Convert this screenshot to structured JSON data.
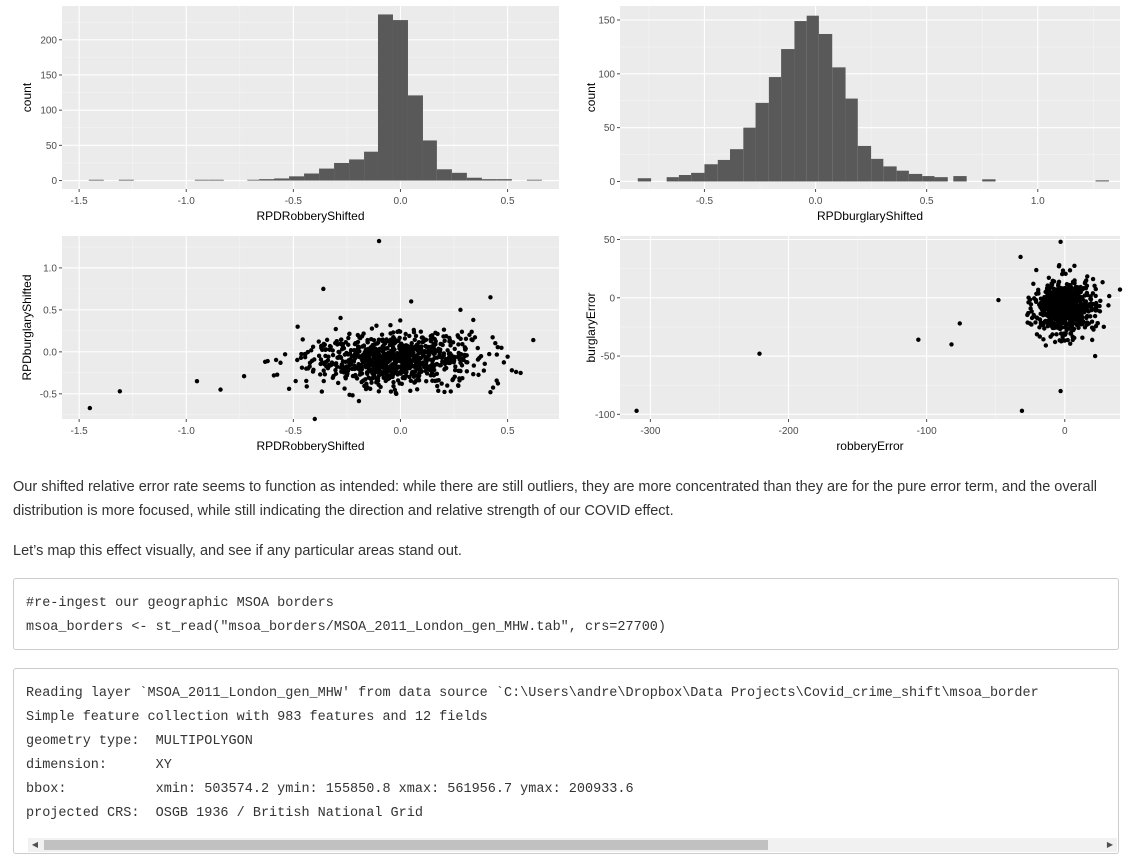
{
  "chart_data": [
    {
      "type": "bar",
      "xlabel": "RPDRobberyShifted",
      "ylabel": "count",
      "xlim": [
        -1.58,
        0.74
      ],
      "ylim": [
        -12,
        248
      ],
      "xticks": [
        "-1.5",
        "-1.0",
        "-0.5",
        "0.0",
        "0.5"
      ],
      "yticks": [
        "0",
        "50",
        "100",
        "150",
        "200"
      ],
      "grid": true,
      "bins": {
        "bin_start": [
          -1.455,
          -1.315,
          -0.96,
          -0.895,
          -0.715,
          -0.66,
          -0.59,
          -0.52,
          -0.45,
          -0.38,
          -0.31,
          -0.24,
          -0.17,
          -0.105,
          -0.035,
          0.035,
          0.105,
          0.17,
          0.24,
          0.31,
          0.38,
          0.45,
          0.59
        ],
        "bin_end": [
          -1.385,
          -1.245,
          -0.895,
          -0.825,
          -0.66,
          -0.59,
          -0.52,
          -0.45,
          -0.38,
          -0.31,
          -0.24,
          -0.17,
          -0.105,
          -0.035,
          0.035,
          0.105,
          0.17,
          0.24,
          0.31,
          0.38,
          0.45,
          0.52,
          0.66
        ],
        "count": [
          1,
          1,
          1,
          1,
          1,
          2,
          3,
          6,
          10,
          17,
          25,
          30,
          41,
          236,
          228,
          121,
          57,
          16,
          11,
          4,
          2,
          2,
          1
        ]
      }
    },
    {
      "type": "bar",
      "xlabel": "RPDburglaryShifted",
      "ylabel": "count",
      "xlim": [
        -0.88,
        1.37
      ],
      "ylim": [
        -7,
        163
      ],
      "xticks": [
        "-0.5",
        "0.0",
        "0.5",
        "1.0"
      ],
      "yticks": [
        "0",
        "50",
        "100",
        "150"
      ],
      "grid": true,
      "bins": {
        "bin_start": [
          -0.8,
          -0.67,
          -0.615,
          -0.56,
          -0.5,
          -0.44,
          -0.385,
          -0.325,
          -0.27,
          -0.21,
          -0.155,
          -0.095,
          -0.04,
          0.015,
          0.075,
          0.135,
          0.19,
          0.25,
          0.305,
          0.365,
          0.42,
          0.48,
          0.535,
          0.62,
          0.75,
          1.26
        ],
        "bin_end": [
          -0.74,
          -0.615,
          -0.56,
          -0.5,
          -0.44,
          -0.385,
          -0.325,
          -0.27,
          -0.21,
          -0.155,
          -0.095,
          -0.04,
          0.015,
          0.075,
          0.135,
          0.19,
          0.25,
          0.305,
          0.365,
          0.42,
          0.48,
          0.535,
          0.595,
          0.68,
          0.81,
          1.32
        ],
        "count": [
          3,
          4,
          6,
          8,
          16,
          20,
          30,
          50,
          73,
          97,
          123,
          149,
          154,
          137,
          106,
          77,
          33,
          21,
          14,
          10,
          7,
          5,
          4,
          5,
          2,
          1
        ]
      }
    },
    {
      "type": "scatter",
      "xlabel": "RPDRobberyShifted",
      "ylabel": "RPDburglaryShifted",
      "xlim": [
        -1.58,
        0.74
      ],
      "ylim": [
        -0.8,
        1.38
      ],
      "xticks": [
        "-1.5",
        "-1.0",
        "-0.5",
        "0.0",
        "0.5"
      ],
      "yticks": [
        "-0.5",
        "0.0",
        "0.5",
        "1.0"
      ],
      "grid": true,
      "cloud": {
        "n": 880,
        "x_mean": -0.03,
        "x_sd": 0.19,
        "y_mean": -0.1,
        "y_sd": 0.16
      },
      "points": [
        [
          -1.45,
          -0.67
        ],
        [
          -1.31,
          -0.47
        ],
        [
          -0.95,
          -0.35
        ],
        [
          -0.84,
          -0.45
        ],
        [
          -0.73,
          -0.29
        ],
        [
          -0.62,
          -0.11
        ],
        [
          -0.56,
          -0.13
        ],
        [
          -0.52,
          -0.44
        ],
        [
          -0.36,
          0.75
        ],
        [
          -0.1,
          1.32
        ],
        [
          -0.4,
          -0.8
        ],
        [
          -0.02,
          -0.5
        ],
        [
          0.42,
          -0.48
        ],
        [
          0.42,
          0.65
        ],
        [
          0.62,
          0.14
        ],
        [
          0.52,
          -0.22
        ],
        [
          0.34,
          0.38
        ],
        [
          0.28,
          0.5
        ],
        [
          -0.48,
          0.3
        ],
        [
          0.05,
          0.6
        ]
      ]
    },
    {
      "type": "scatter",
      "xlabel": "robberyError",
      "ylabel": "burglaryError",
      "xlim": [
        -322,
        40
      ],
      "ylim": [
        -104,
        53
      ],
      "xticks": [
        "-300",
        "-200",
        "-100",
        "0"
      ],
      "yticks": [
        "-100",
        "-50",
        "0",
        "50"
      ],
      "grid": true,
      "cloud": {
        "n": 700,
        "x_mean": 0,
        "x_sd": 11,
        "y_mean": -8,
        "y_sd": 12
      },
      "points": [
        [
          -310,
          -97
        ],
        [
          -221,
          -48
        ],
        [
          -106,
          -36
        ],
        [
          -76,
          -22
        ],
        [
          -82,
          -40
        ],
        [
          -31,
          -97
        ],
        [
          -3,
          -80
        ],
        [
          -3,
          48
        ],
        [
          -32,
          35
        ],
        [
          40,
          7
        ],
        [
          22,
          -50
        ],
        [
          -48,
          -2
        ]
      ]
    }
  ],
  "text": {
    "paragraph1": "Our shifted relative error rate seems to function as intended: while there are still outliers, they are more concentrated than they are for the pure error term, and the overall distribution is more focused, while still indicating the direction and relative strength of our COVID effect.",
    "paragraph2": "Let’s map this effect visually, and see if any particular areas stand out."
  },
  "code": {
    "line1": "#re-ingest our geographic MSOA borders",
    "line2": "msoa_borders <- st_read(\"msoa_borders/MSOA_2011_London_gen_MHW.tab\", crs=27700)"
  },
  "output": {
    "line1": "Reading layer `MSOA_2011_London_gen_MHW' from data source `C:\\Users\\andre\\Dropbox\\Data Projects\\Covid_crime_shift\\msoa_border",
    "line2": "Simple feature collection with 983 features and 12 fields",
    "line3": "geometry type:  MULTIPOLYGON",
    "line4": "dimension:      XY",
    "line5": "bbox:           xmin: 503574.2 ymin: 155850.8 xmax: 561956.7 ymax: 200933.6",
    "line6": "projected CRS:  OSGB 1936 / British National Grid"
  },
  "icons": {
    "scroll_left": "scroll-left-arrow-icon",
    "scroll_right": "scroll-right-arrow-icon"
  }
}
